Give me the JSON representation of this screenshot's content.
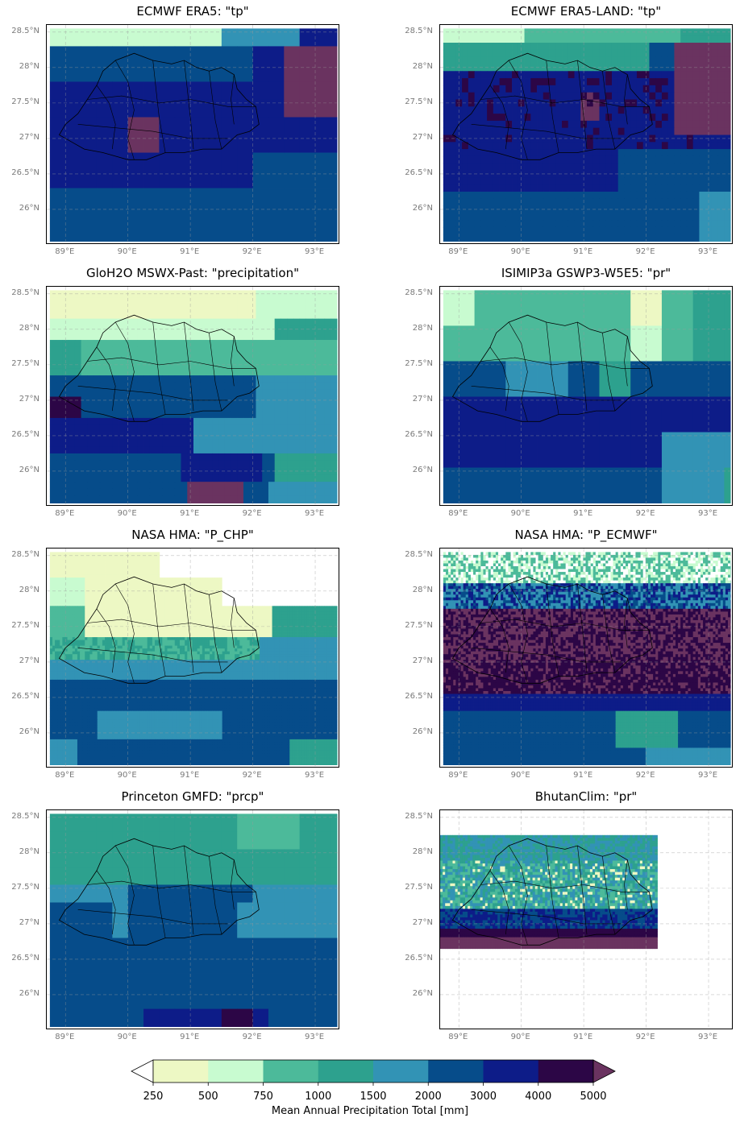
{
  "colorbar": {
    "label": "Mean Annual Precipitation Total [mm]",
    "levels": [
      "250",
      "500",
      "750",
      "1000",
      "1500",
      "2000",
      "3000",
      "4000",
      "5000"
    ],
    "colors": [
      "#edf8c4",
      "#c8fbd0",
      "#4cba9a",
      "#2da18e",
      "#3293b5",
      "#064c8a",
      "#0d1c88",
      "#2c0646"
    ],
    "over_color": "#6a3360",
    "under_color": "#ffffff"
  },
  "axes": {
    "x_ticks": [
      "89°E",
      "90°E",
      "91°E",
      "92°E",
      "93°E"
    ],
    "y_ticks": [
      "28.5°N",
      "28°N",
      "27.5°N",
      "27°N",
      "26.5°N",
      "26°N"
    ]
  },
  "chart_data": [
    {
      "type": "heatmap",
      "title": "ECMWF ERA5: \"tp\"",
      "xlim": [
        88.7,
        93.4
      ],
      "ylim": [
        25.5,
        28.6
      ],
      "grid": true,
      "pattern": "coarse",
      "cells": "0.25° grid of mean annual precipitation (mm)"
    },
    {
      "type": "heatmap",
      "title": "ECMWF ERA5-LAND: \"tp\"",
      "xlim": [
        88.7,
        93.4
      ],
      "ylim": [
        25.5,
        28.6
      ],
      "grid": true,
      "pattern": "medium",
      "cells": "0.1° grid of mean annual precipitation (mm)"
    },
    {
      "type": "heatmap",
      "title": "GloH2O MSWX-Past: \"precipitation\"",
      "xlim": [
        88.7,
        93.4
      ],
      "ylim": [
        25.5,
        28.6
      ],
      "grid": true,
      "pattern": "medium-dry",
      "cells": "0.1° grid of mean annual precipitation (mm)"
    },
    {
      "type": "heatmap",
      "title": "ISIMIP3a GSWP3-W5E5: \"pr\"",
      "xlim": [
        88.7,
        93.4
      ],
      "ylim": [
        25.5,
        28.6
      ],
      "grid": true,
      "pattern": "very-coarse",
      "cells": "0.5° grid of mean annual precipitation (mm)"
    },
    {
      "type": "heatmap",
      "title": "NASA HMA: \"P_CHP\"",
      "xlim": [
        88.7,
        93.4
      ],
      "ylim": [
        25.5,
        28.6
      ],
      "grid": true,
      "pattern": "fine-dry",
      "cells": "fine grid of mean annual precipitation (mm)"
    },
    {
      "type": "heatmap",
      "title": "NASA HMA: \"P_ECMWF\"",
      "xlim": [
        88.7,
        93.4
      ],
      "ylim": [
        25.5,
        28.6
      ],
      "grid": true,
      "pattern": "fine-wet",
      "cells": "fine grid of mean annual precipitation (mm)"
    },
    {
      "type": "heatmap",
      "title": "Princeton GMFD: \"prcp\"",
      "xlim": [
        88.7,
        93.4
      ],
      "ylim": [
        25.5,
        28.6
      ],
      "grid": true,
      "pattern": "coarse-flat",
      "cells": "0.25° grid of mean annual precipitation (mm)"
    },
    {
      "type": "heatmap",
      "title": "BhutanClim: \"pr\"",
      "xlim": [
        88.7,
        93.4
      ],
      "ylim": [
        25.5,
        28.6
      ],
      "grid": true,
      "pattern": "bhutan-only",
      "cells": "high-resolution grid over Bhutan only (88.7–92.2°E, 26.65–28.25°N)"
    }
  ]
}
